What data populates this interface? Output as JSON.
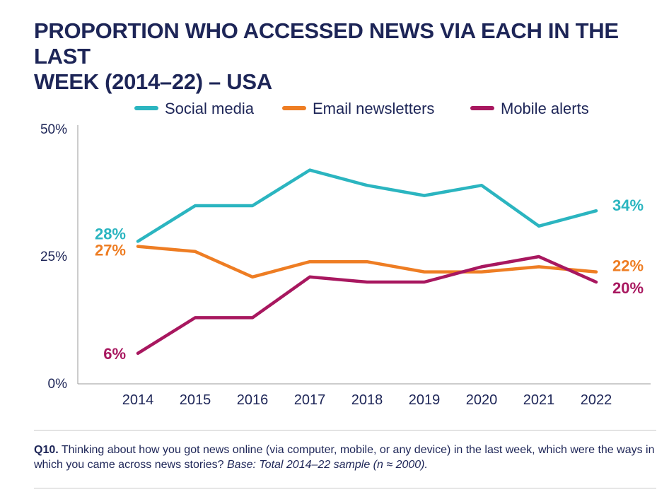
{
  "title_lines": [
    "PROPORTION WHO ACCESSED NEWS VIA EACH IN THE LAST",
    "WEEK (2014–22) – USA"
  ],
  "footer": {
    "question_label": "Q10.",
    "question_text": " Thinking about how you got news online (via computer, mobile, or any device) in the last week, which were the ways in which you came across news stories? ",
    "base_text": "Base: Total 2014–22 sample (n ≈ 2000)."
  },
  "chart_data": {
    "type": "line",
    "title": "PROPORTION WHO ACCESSED NEWS VIA EACH IN THE LAST WEEK (2014–22) – USA",
    "xlabel": "",
    "ylabel": "",
    "categories": [
      "2014",
      "2015",
      "2016",
      "2017",
      "2018",
      "2019",
      "2020",
      "2021",
      "2022"
    ],
    "ylim": [
      0,
      50
    ],
    "yticks": [
      0,
      25,
      50
    ],
    "ytick_labels": [
      "0%",
      "25%",
      "50%"
    ],
    "grid": false,
    "legend_position": "top",
    "series": [
      {
        "name": "Social media",
        "color": "#2bb5c0",
        "values": [
          28,
          35,
          35,
          42,
          39,
          37,
          39,
          31,
          34
        ],
        "start_label": "28%",
        "end_label": "34%"
      },
      {
        "name": "Email newsletters",
        "color": "#ee7d23",
        "values": [
          27,
          26,
          21,
          24,
          24,
          22,
          22,
          23,
          22
        ],
        "start_label": "27%",
        "end_label": "22%"
      },
      {
        "name": "Mobile alerts",
        "color": "#a8175f",
        "values": [
          6,
          13,
          13,
          21,
          20,
          20,
          23,
          25,
          20
        ],
        "start_label": "6%",
        "end_label": "20%"
      }
    ]
  }
}
